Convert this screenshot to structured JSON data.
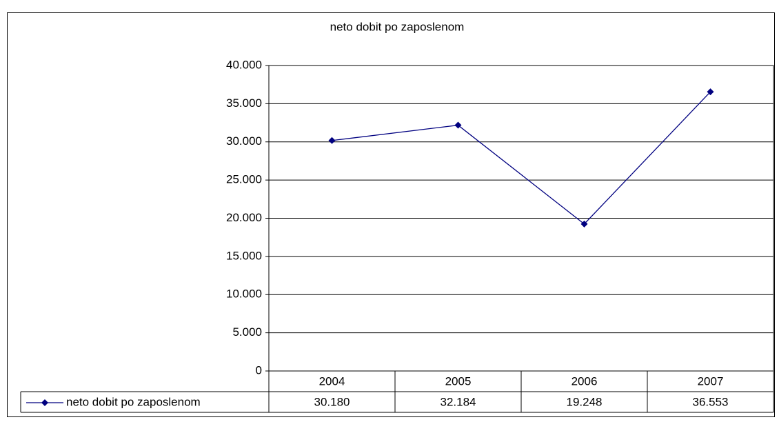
{
  "chart_data": {
    "type": "line",
    "title": "neto dobit po zaposlenom",
    "categories": [
      "2004",
      "2005",
      "2006",
      "2007"
    ],
    "series": [
      {
        "name": "neto dobit po zaposlenom",
        "color": "#000080",
        "values": [
          30180,
          32184,
          19248,
          36553
        ],
        "value_labels": [
          "30.180",
          "32.184",
          "19.248",
          "36.553"
        ]
      }
    ],
    "ylim": [
      0,
      40000
    ],
    "yticks": [
      0,
      {
        "value": 5000,
        "label": "5.000"
      },
      {
        "value": 10000,
        "label": "10.000"
      },
      {
        "value": 15000,
        "label": "15.000"
      },
      {
        "value": 20000,
        "label": "20.000"
      },
      {
        "value": 25000,
        "label": "25.000"
      },
      {
        "value": 30000,
        "label": "30.000"
      },
      {
        "value": 35000,
        "label": "35.000"
      },
      {
        "value": 40000,
        "label": "40.000"
      }
    ],
    "grid": true,
    "data_table": true
  }
}
